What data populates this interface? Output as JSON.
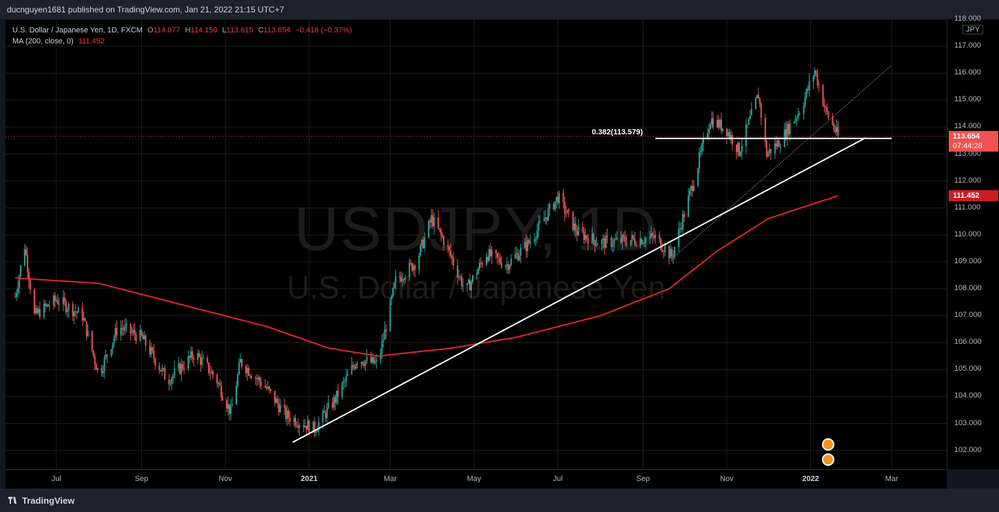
{
  "header": {
    "published": "ducnguyen1681 published on TradingView.com, Jan 21, 2022 21:15 UTC+7"
  },
  "legend": {
    "symbol": "U.S. Dollar / Japanese Yen, 1D, FXCM",
    "o_label": "O",
    "o_value": "114.077",
    "h_label": "H",
    "h_value": "114.150",
    "l_label": "L",
    "l_value": "113.615",
    "c_label": "C",
    "c_value": "113.654",
    "change": "−0.418 (−0.37%)",
    "ma_label": "MA (200, close, 0)",
    "ma_value": "111.452"
  },
  "watermark": {
    "line1": "USDJPY, 1D",
    "line2": "U.S. Dollar / Japanese Yen"
  },
  "price_axis": {
    "currency": "JPY",
    "ticks": [
      "118.000",
      "117.000",
      "116.000",
      "115.000",
      "114.000",
      "113.000",
      "112.000",
      "111.000",
      "110.000",
      "109.000",
      "108.000",
      "107.000",
      "106.000",
      "105.000",
      "104.000",
      "103.000",
      "102.000"
    ],
    "last_price": "113.654",
    "countdown": "07:44:28",
    "ma_tag": "111.452"
  },
  "time_axis": {
    "labels": [
      "Jul",
      "Sep",
      "Nov",
      "2021",
      "Mar",
      "May",
      "Jul",
      "Sep",
      "Nov",
      "2022",
      "Mar"
    ]
  },
  "fib": {
    "label": "0.382(113.579)",
    "level": 113.579
  },
  "colors": {
    "up": "#26a69a",
    "down": "#ef5350",
    "ma": "#e0262b",
    "bg": "#000000"
  },
  "footer": {
    "brand": "TradingView"
  },
  "chart_data": {
    "type": "candlestick",
    "title": "USDJPY, 1D",
    "ylim": [
      101.3,
      118.0
    ],
    "grid": true,
    "legend_placement": "top-left",
    "x_range_months": [
      "2020-06",
      "2022-03"
    ],
    "close_series": [
      {
        "date": "2020-06-01",
        "close": 107.7
      },
      {
        "date": "2020-06-08",
        "close": 109.6
      },
      {
        "date": "2020-06-15",
        "close": 107.0
      },
      {
        "date": "2020-07-01",
        "close": 107.6
      },
      {
        "date": "2020-07-20",
        "close": 107.0
      },
      {
        "date": "2020-08-01",
        "close": 104.8
      },
      {
        "date": "2020-08-15",
        "close": 106.6
      },
      {
        "date": "2020-09-01",
        "close": 106.2
      },
      {
        "date": "2020-09-20",
        "close": 104.6
      },
      {
        "date": "2020-10-10",
        "close": 105.6
      },
      {
        "date": "2020-10-25",
        "close": 104.7
      },
      {
        "date": "2020-11-05",
        "close": 103.4
      },
      {
        "date": "2020-11-12",
        "close": 105.3
      },
      {
        "date": "2020-12-01",
        "close": 104.3
      },
      {
        "date": "2020-12-15",
        "close": 103.3
      },
      {
        "date": "2021-01-05",
        "close": 102.8
      },
      {
        "date": "2021-01-20",
        "close": 103.9
      },
      {
        "date": "2021-02-05",
        "close": 105.4
      },
      {
        "date": "2021-02-20",
        "close": 105.2
      },
      {
        "date": "2021-03-05",
        "close": 108.3
      },
      {
        "date": "2021-03-20",
        "close": 109.0
      },
      {
        "date": "2021-03-31",
        "close": 110.6
      },
      {
        "date": "2021-04-10",
        "close": 109.7
      },
      {
        "date": "2021-04-25",
        "close": 107.9
      },
      {
        "date": "2021-05-10",
        "close": 109.3
      },
      {
        "date": "2021-05-25",
        "close": 108.9
      },
      {
        "date": "2021-06-10",
        "close": 109.7
      },
      {
        "date": "2021-07-01",
        "close": 111.4
      },
      {
        "date": "2021-07-15",
        "close": 110.1
      },
      {
        "date": "2021-08-01",
        "close": 109.7
      },
      {
        "date": "2021-08-20",
        "close": 109.8
      },
      {
        "date": "2021-09-10",
        "close": 109.9
      },
      {
        "date": "2021-09-22",
        "close": 109.2
      },
      {
        "date": "2021-10-05",
        "close": 111.5
      },
      {
        "date": "2021-10-20",
        "close": 114.3
      },
      {
        "date": "2021-11-01",
        "close": 113.9
      },
      {
        "date": "2021-11-10",
        "close": 113.1
      },
      {
        "date": "2021-11-24",
        "close": 115.2
      },
      {
        "date": "2021-11-30",
        "close": 113.0
      },
      {
        "date": "2021-12-10",
        "close": 113.5
      },
      {
        "date": "2021-12-25",
        "close": 114.7
      },
      {
        "date": "2022-01-04",
        "close": 116.1
      },
      {
        "date": "2022-01-12",
        "close": 114.6
      },
      {
        "date": "2022-01-21",
        "close": 113.654
      }
    ],
    "ma_series": [
      {
        "date": "2020-06-01",
        "value": 108.4
      },
      {
        "date": "2020-08-01",
        "value": 108.2
      },
      {
        "date": "2020-10-01",
        "value": 107.4
      },
      {
        "date": "2020-12-01",
        "value": 106.6
      },
      {
        "date": "2021-01-15",
        "value": 105.8
      },
      {
        "date": "2021-02-20",
        "value": 105.5
      },
      {
        "date": "2021-04-15",
        "value": 105.8
      },
      {
        "date": "2021-06-01",
        "value": 106.2
      },
      {
        "date": "2021-08-01",
        "value": 107.0
      },
      {
        "date": "2021-09-20",
        "value": 108.0
      },
      {
        "date": "2021-10-25",
        "value": 109.4
      },
      {
        "date": "2021-12-01",
        "value": 110.6
      },
      {
        "date": "2022-01-21",
        "value": 111.452
      }
    ]
  }
}
